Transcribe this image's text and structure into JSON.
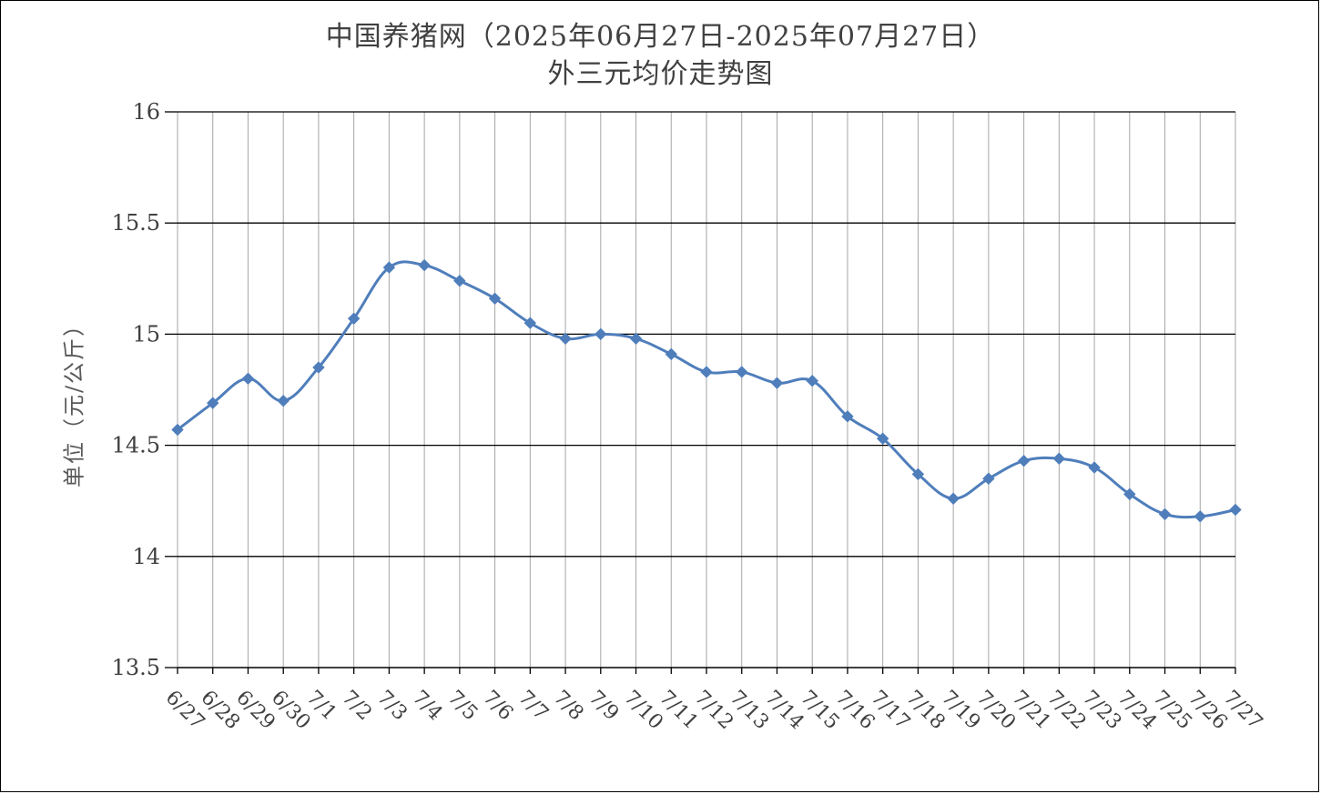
{
  "chart_data": {
    "type": "line",
    "title": "中国养猪网（2025年06月27日-2025年07月27日）",
    "subtitle": "外三元均价走势图",
    "xlabel": "",
    "ylabel": "单位（元/公斤）",
    "ylim": [
      13.5,
      16
    ],
    "yticks": [
      13.5,
      14,
      14.5,
      15,
      15.5,
      16
    ],
    "ytick_labels": [
      "13.5",
      "14",
      "14.5",
      "15",
      "15.5",
      "16"
    ],
    "categories": [
      "6/27",
      "6/28",
      "6/29",
      "6/30",
      "7/1",
      "7/2",
      "7/3",
      "7/4",
      "7/5",
      "7/6",
      "7/7",
      "7/8",
      "7/9",
      "7/10",
      "7/11",
      "7/12",
      "7/13",
      "7/14",
      "7/15",
      "7/16",
      "7/17",
      "7/18",
      "7/19",
      "7/20",
      "7/21",
      "7/22",
      "7/23",
      "7/24",
      "7/25",
      "7/26",
      "7/27"
    ],
    "series": [
      {
        "values": [
          14.57,
          14.69,
          14.8,
          14.7,
          14.85,
          15.07,
          15.3,
          15.31,
          15.24,
          15.16,
          15.05,
          14.98,
          15.0,
          14.98,
          14.91,
          14.83,
          14.83,
          14.78,
          14.79,
          14.63,
          14.53,
          14.37,
          14.26,
          14.35,
          14.43,
          14.44,
          14.4,
          14.28,
          14.19,
          14.18,
          14.21
        ],
        "color": "#4F7EBB",
        "marker": "diamond",
        "smooth": true
      }
    ],
    "grid": {
      "horizontal": true,
      "vertical": true,
      "horizontal_color": "#000000",
      "vertical_color": "#A6A6A6"
    },
    "legend": "none"
  }
}
